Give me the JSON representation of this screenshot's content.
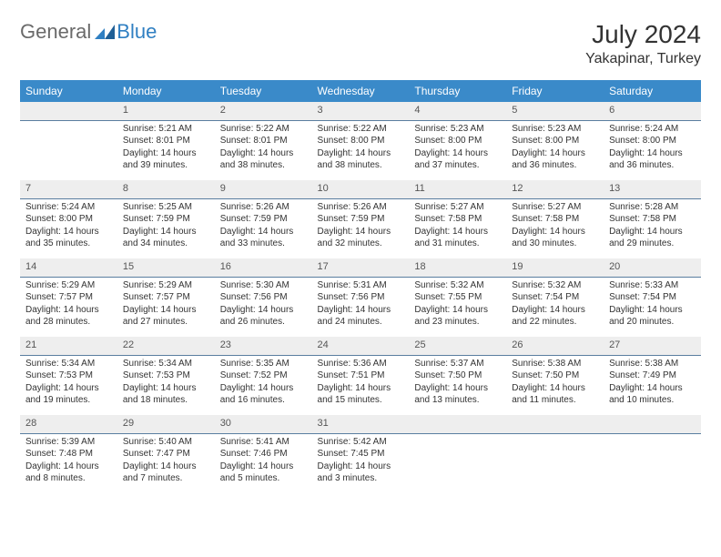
{
  "logo": {
    "part1": "General",
    "part2": "Blue"
  },
  "title": "July 2024",
  "location": "Yakapinar, Turkey",
  "header_color": "#3a8ac9",
  "daynum_bg": "#eeeeee",
  "divider_color": "#5a7ea0",
  "weekdays": [
    "Sunday",
    "Monday",
    "Tuesday",
    "Wednesday",
    "Thursday",
    "Friday",
    "Saturday"
  ],
  "weeks": [
    [
      null,
      {
        "n": "1",
        "sr": "Sunrise: 5:21 AM",
        "ss": "Sunset: 8:01 PM",
        "d1": "Daylight: 14 hours",
        "d2": "and 39 minutes."
      },
      {
        "n": "2",
        "sr": "Sunrise: 5:22 AM",
        "ss": "Sunset: 8:01 PM",
        "d1": "Daylight: 14 hours",
        "d2": "and 38 minutes."
      },
      {
        "n": "3",
        "sr": "Sunrise: 5:22 AM",
        "ss": "Sunset: 8:00 PM",
        "d1": "Daylight: 14 hours",
        "d2": "and 38 minutes."
      },
      {
        "n": "4",
        "sr": "Sunrise: 5:23 AM",
        "ss": "Sunset: 8:00 PM",
        "d1": "Daylight: 14 hours",
        "d2": "and 37 minutes."
      },
      {
        "n": "5",
        "sr": "Sunrise: 5:23 AM",
        "ss": "Sunset: 8:00 PM",
        "d1": "Daylight: 14 hours",
        "d2": "and 36 minutes."
      },
      {
        "n": "6",
        "sr": "Sunrise: 5:24 AM",
        "ss": "Sunset: 8:00 PM",
        "d1": "Daylight: 14 hours",
        "d2": "and 36 minutes."
      }
    ],
    [
      {
        "n": "7",
        "sr": "Sunrise: 5:24 AM",
        "ss": "Sunset: 8:00 PM",
        "d1": "Daylight: 14 hours",
        "d2": "and 35 minutes."
      },
      {
        "n": "8",
        "sr": "Sunrise: 5:25 AM",
        "ss": "Sunset: 7:59 PM",
        "d1": "Daylight: 14 hours",
        "d2": "and 34 minutes."
      },
      {
        "n": "9",
        "sr": "Sunrise: 5:26 AM",
        "ss": "Sunset: 7:59 PM",
        "d1": "Daylight: 14 hours",
        "d2": "and 33 minutes."
      },
      {
        "n": "10",
        "sr": "Sunrise: 5:26 AM",
        "ss": "Sunset: 7:59 PM",
        "d1": "Daylight: 14 hours",
        "d2": "and 32 minutes."
      },
      {
        "n": "11",
        "sr": "Sunrise: 5:27 AM",
        "ss": "Sunset: 7:58 PM",
        "d1": "Daylight: 14 hours",
        "d2": "and 31 minutes."
      },
      {
        "n": "12",
        "sr": "Sunrise: 5:27 AM",
        "ss": "Sunset: 7:58 PM",
        "d1": "Daylight: 14 hours",
        "d2": "and 30 minutes."
      },
      {
        "n": "13",
        "sr": "Sunrise: 5:28 AM",
        "ss": "Sunset: 7:58 PM",
        "d1": "Daylight: 14 hours",
        "d2": "and 29 minutes."
      }
    ],
    [
      {
        "n": "14",
        "sr": "Sunrise: 5:29 AM",
        "ss": "Sunset: 7:57 PM",
        "d1": "Daylight: 14 hours",
        "d2": "and 28 minutes."
      },
      {
        "n": "15",
        "sr": "Sunrise: 5:29 AM",
        "ss": "Sunset: 7:57 PM",
        "d1": "Daylight: 14 hours",
        "d2": "and 27 minutes."
      },
      {
        "n": "16",
        "sr": "Sunrise: 5:30 AM",
        "ss": "Sunset: 7:56 PM",
        "d1": "Daylight: 14 hours",
        "d2": "and 26 minutes."
      },
      {
        "n": "17",
        "sr": "Sunrise: 5:31 AM",
        "ss": "Sunset: 7:56 PM",
        "d1": "Daylight: 14 hours",
        "d2": "and 24 minutes."
      },
      {
        "n": "18",
        "sr": "Sunrise: 5:32 AM",
        "ss": "Sunset: 7:55 PM",
        "d1": "Daylight: 14 hours",
        "d2": "and 23 minutes."
      },
      {
        "n": "19",
        "sr": "Sunrise: 5:32 AM",
        "ss": "Sunset: 7:54 PM",
        "d1": "Daylight: 14 hours",
        "d2": "and 22 minutes."
      },
      {
        "n": "20",
        "sr": "Sunrise: 5:33 AM",
        "ss": "Sunset: 7:54 PM",
        "d1": "Daylight: 14 hours",
        "d2": "and 20 minutes."
      }
    ],
    [
      {
        "n": "21",
        "sr": "Sunrise: 5:34 AM",
        "ss": "Sunset: 7:53 PM",
        "d1": "Daylight: 14 hours",
        "d2": "and 19 minutes."
      },
      {
        "n": "22",
        "sr": "Sunrise: 5:34 AM",
        "ss": "Sunset: 7:53 PM",
        "d1": "Daylight: 14 hours",
        "d2": "and 18 minutes."
      },
      {
        "n": "23",
        "sr": "Sunrise: 5:35 AM",
        "ss": "Sunset: 7:52 PM",
        "d1": "Daylight: 14 hours",
        "d2": "and 16 minutes."
      },
      {
        "n": "24",
        "sr": "Sunrise: 5:36 AM",
        "ss": "Sunset: 7:51 PM",
        "d1": "Daylight: 14 hours",
        "d2": "and 15 minutes."
      },
      {
        "n": "25",
        "sr": "Sunrise: 5:37 AM",
        "ss": "Sunset: 7:50 PM",
        "d1": "Daylight: 14 hours",
        "d2": "and 13 minutes."
      },
      {
        "n": "26",
        "sr": "Sunrise: 5:38 AM",
        "ss": "Sunset: 7:50 PM",
        "d1": "Daylight: 14 hours",
        "d2": "and 11 minutes."
      },
      {
        "n": "27",
        "sr": "Sunrise: 5:38 AM",
        "ss": "Sunset: 7:49 PM",
        "d1": "Daylight: 14 hours",
        "d2": "and 10 minutes."
      }
    ],
    [
      {
        "n": "28",
        "sr": "Sunrise: 5:39 AM",
        "ss": "Sunset: 7:48 PM",
        "d1": "Daylight: 14 hours",
        "d2": "and 8 minutes."
      },
      {
        "n": "29",
        "sr": "Sunrise: 5:40 AM",
        "ss": "Sunset: 7:47 PM",
        "d1": "Daylight: 14 hours",
        "d2": "and 7 minutes."
      },
      {
        "n": "30",
        "sr": "Sunrise: 5:41 AM",
        "ss": "Sunset: 7:46 PM",
        "d1": "Daylight: 14 hours",
        "d2": "and 5 minutes."
      },
      {
        "n": "31",
        "sr": "Sunrise: 5:42 AM",
        "ss": "Sunset: 7:45 PM",
        "d1": "Daylight: 14 hours",
        "d2": "and 3 minutes."
      },
      null,
      null,
      null
    ]
  ]
}
